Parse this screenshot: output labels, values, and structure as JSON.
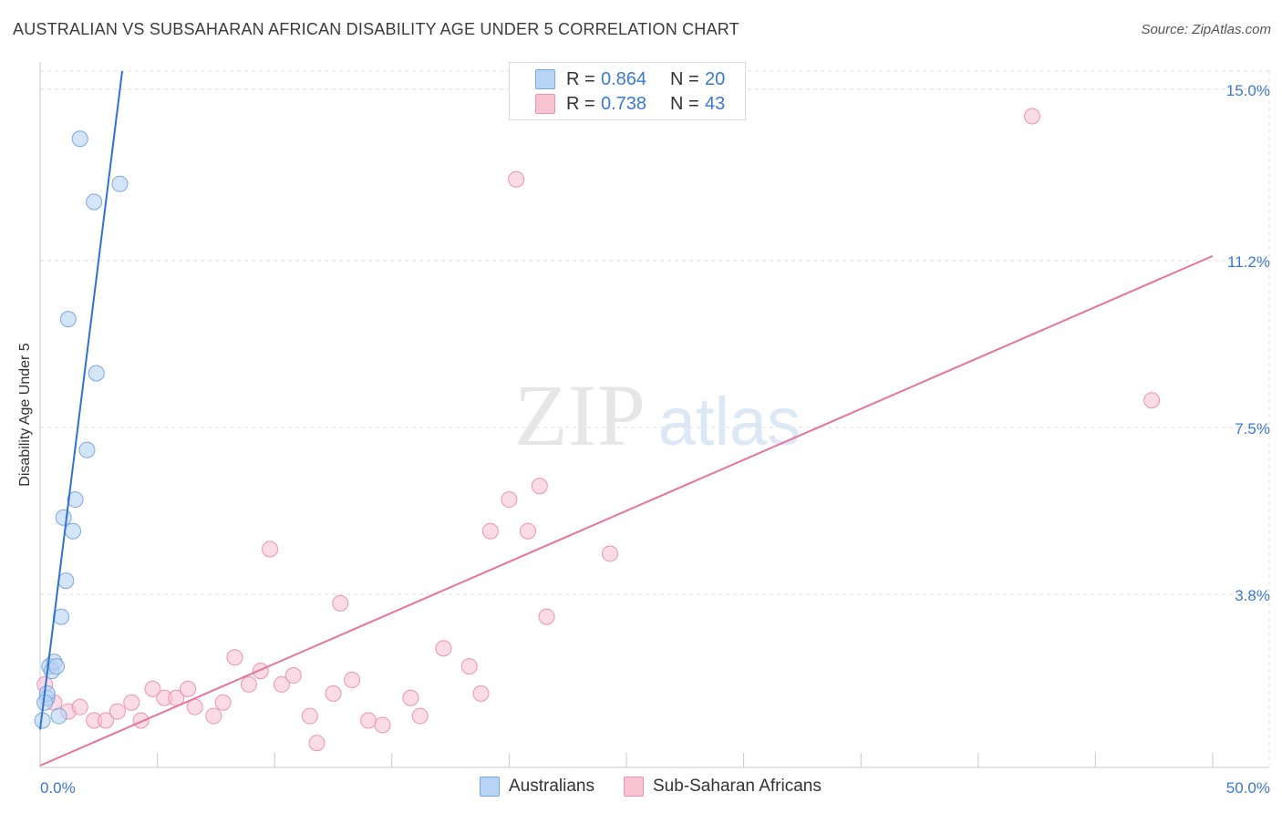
{
  "header": {
    "title": "AUSTRALIAN VS SUBSAHARAN AFRICAN DISABILITY AGE UNDER 5 CORRELATION CHART",
    "source": "Source: ZipAtlas.com"
  },
  "watermark": {
    "zip": "ZIP",
    "atlas": "atlas"
  },
  "legend": {
    "rows": [
      {
        "r_label": "R =",
        "r_value": "0.864",
        "n_label": "N =",
        "n_value": "20"
      },
      {
        "r_label": "R =",
        "r_value": "0.738",
        "n_label": "N =",
        "n_value": "43"
      }
    ],
    "bottom": [
      "Australians",
      "Sub-Saharan Africans"
    ]
  },
  "colors": {
    "blue_fill": "#b8d4f5",
    "blue_stroke": "#7aa7e0",
    "blue_line": "#2f72d0",
    "pink_fill": "#f8c3d3",
    "pink_stroke": "#eb93b0",
    "pink_line": "#e8739a",
    "tick_label": "#3a78d4",
    "grid": "#dddddd"
  },
  "chart_data": {
    "type": "scatter",
    "title": "AUSTRALIAN VS SUBSAHARAN AFRICAN DISABILITY AGE UNDER 5 CORRELATION CHART",
    "xlabel": "",
    "ylabel": "Disability Age Under 5",
    "xlim": [
      0,
      50
    ],
    "ylim": [
      0,
      15.4
    ],
    "x_tick_labels": [
      "0.0%",
      "50.0%"
    ],
    "y_ticks": [
      3.8,
      7.5,
      11.2,
      15.0
    ],
    "y_tick_labels": [
      "3.8%",
      "7.5%",
      "11.2%",
      "15.0%"
    ],
    "series": [
      {
        "name": "Australians",
        "points": [
          [
            0.1,
            1.0
          ],
          [
            0.3,
            1.5
          ],
          [
            0.3,
            1.6
          ],
          [
            0.4,
            2.2
          ],
          [
            0.5,
            2.1
          ],
          [
            0.6,
            2.3
          ],
          [
            0.7,
            2.2
          ],
          [
            0.8,
            1.1
          ],
          [
            0.9,
            3.3
          ],
          [
            1.0,
            5.5
          ],
          [
            1.1,
            4.1
          ],
          [
            1.2,
            9.9
          ],
          [
            1.4,
            5.2
          ],
          [
            1.5,
            5.9
          ],
          [
            1.7,
            13.9
          ],
          [
            2.0,
            7.0
          ],
          [
            2.3,
            12.5
          ],
          [
            2.4,
            8.7
          ],
          [
            3.4,
            12.9
          ],
          [
            0.2,
            1.4
          ]
        ],
        "trendline": {
          "x": [
            0.0,
            3.5
          ],
          "y": [
            0.8,
            15.4
          ]
        }
      },
      {
        "name": "Sub-Saharan Africans",
        "points": [
          [
            0.2,
            1.8
          ],
          [
            0.6,
            1.4
          ],
          [
            1.2,
            1.2
          ],
          [
            1.7,
            1.3
          ],
          [
            2.3,
            1.0
          ],
          [
            2.8,
            1.0
          ],
          [
            3.3,
            1.2
          ],
          [
            3.9,
            1.4
          ],
          [
            4.3,
            1.0
          ],
          [
            4.8,
            1.7
          ],
          [
            5.3,
            1.5
          ],
          [
            5.8,
            1.5
          ],
          [
            6.3,
            1.7
          ],
          [
            6.6,
            1.3
          ],
          [
            7.4,
            1.1
          ],
          [
            7.8,
            1.4
          ],
          [
            8.3,
            2.4
          ],
          [
            8.9,
            1.8
          ],
          [
            9.4,
            2.1
          ],
          [
            9.8,
            4.8
          ],
          [
            10.3,
            1.8
          ],
          [
            10.8,
            2.0
          ],
          [
            11.5,
            1.1
          ],
          [
            11.8,
            0.5
          ],
          [
            12.5,
            1.6
          ],
          [
            12.8,
            3.6
          ],
          [
            13.3,
            1.9
          ],
          [
            14.0,
            1.0
          ],
          [
            14.6,
            0.9
          ],
          [
            15.8,
            1.5
          ],
          [
            16.2,
            1.1
          ],
          [
            17.2,
            2.6
          ],
          [
            18.3,
            2.2
          ],
          [
            18.8,
            1.6
          ],
          [
            19.2,
            5.2
          ],
          [
            20.0,
            5.9
          ],
          [
            20.3,
            13.0
          ],
          [
            20.8,
            5.2
          ],
          [
            21.3,
            6.2
          ],
          [
            21.6,
            3.3
          ],
          [
            24.3,
            4.7
          ],
          [
            42.3,
            14.4
          ],
          [
            47.4,
            8.1
          ]
        ],
        "trendline": {
          "x": [
            0.0,
            50.0
          ],
          "y": [
            0.0,
            11.3
          ]
        }
      }
    ]
  }
}
